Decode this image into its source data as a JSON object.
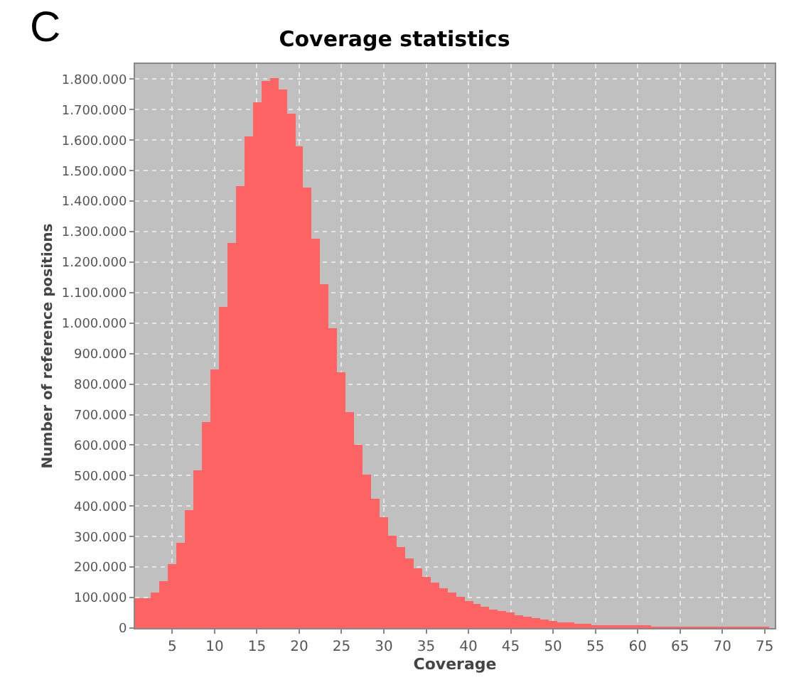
{
  "chart_data": {
    "type": "histogram",
    "title": "Coverage statistics",
    "xlabel": "Coverage",
    "ylabel": "Number of reference positions",
    "annotations": [
      "C"
    ],
    "bins": [
      0.5,
      1.5,
      2.5,
      3.5,
      4.5,
      5.5,
      6.5,
      7.5,
      8.5,
      9.5,
      10.5,
      11.5,
      12.5,
      13.5,
      14.5,
      15.5,
      16.5,
      17.5,
      18.5,
      19.5,
      20.5,
      21.5,
      22.5,
      23.5,
      24.5,
      25.5,
      26.5,
      27.5,
      28.5,
      29.5,
      30.5,
      31.5,
      32.5,
      33.5,
      34.5,
      35.5,
      36.5,
      37.5,
      38.5,
      39.5,
      40.5,
      41.5,
      42.5,
      43.5,
      44.5,
      45.5,
      46.5,
      47.5,
      48.5,
      49.5,
      50.5,
      51.5,
      52.5,
      53.5,
      54.5,
      55.5,
      56.5,
      57.5,
      58.5,
      59.5,
      60.5,
      61.5,
      62.5,
      63.5,
      64.5,
      65.5,
      66.5,
      67.5,
      68.5,
      69.5,
      70.5,
      71.5,
      72.5,
      73.5,
      74.5,
      75.5
    ],
    "values": [
      98000,
      98000,
      117000,
      155000,
      208000,
      280000,
      389000,
      516000,
      676000,
      849000,
      1054000,
      1264000,
      1451000,
      1614000,
      1723000,
      1796000,
      1802000,
      1764000,
      1687000,
      1580000,
      1443000,
      1277000,
      1129000,
      981000,
      841000,
      708000,
      602000,
      505000,
      426000,
      362000,
      305000,
      264000,
      229000,
      194000,
      166000,
      148000,
      131000,
      117000,
      103000,
      90000,
      81000,
      70000,
      62000,
      54000,
      50000,
      42000,
      37000,
      31000,
      27000,
      22000,
      20000,
      17000,
      15000,
      12000,
      11000,
      9000,
      8000,
      7000,
      6000,
      5000,
      5000,
      4000,
      4000,
      3000,
      3000,
      3000,
      2000,
      2000,
      2000,
      2000,
      2000,
      1000,
      1000,
      1000,
      1000
    ],
    "color": "#ff6464",
    "xlim": [
      0.6,
      76.2
    ],
    "xticks": [
      5,
      10,
      15,
      20,
      25,
      30,
      35,
      40,
      45,
      50,
      55,
      60,
      65,
      70,
      75
    ],
    "ylim": [
      0,
      1850000
    ],
    "yticks": [
      {
        "value": 0,
        "label": "0"
      },
      {
        "value": 100000,
        "label": "100.000"
      },
      {
        "value": 200000,
        "label": "200.000"
      },
      {
        "value": 300000,
        "label": "300.000"
      },
      {
        "value": 400000,
        "label": "400.000"
      },
      {
        "value": 500000,
        "label": "500.000"
      },
      {
        "value": 600000,
        "label": "600.000"
      },
      {
        "value": 700000,
        "label": "700.000"
      },
      {
        "value": 800000,
        "label": "800.000"
      },
      {
        "value": 900000,
        "label": "900.000"
      },
      {
        "value": 1000000,
        "label": "1.000.000"
      },
      {
        "value": 1100000,
        "label": "1.100.000"
      },
      {
        "value": 1200000,
        "label": "1.200.000"
      },
      {
        "value": 1300000,
        "label": "1.300.000"
      },
      {
        "value": 1400000,
        "label": "1.400.000"
      },
      {
        "value": 1500000,
        "label": "1.500.000"
      },
      {
        "value": 1600000,
        "label": "1.600.000"
      },
      {
        "value": 1700000,
        "label": "1.700.000"
      },
      {
        "value": 1800000,
        "label": "1.800.000"
      }
    ],
    "grid": true
  }
}
